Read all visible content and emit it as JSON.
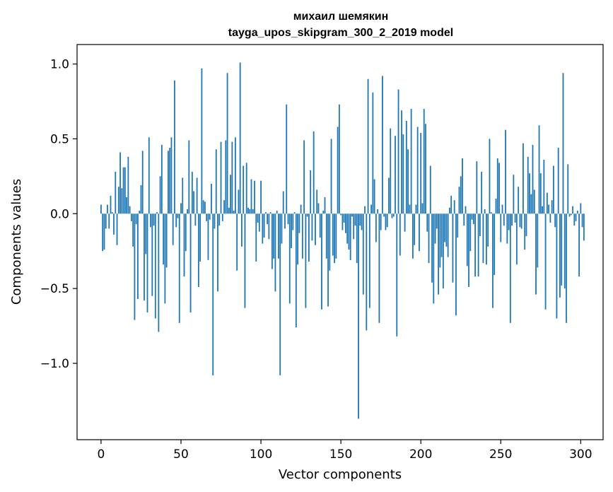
{
  "chart_data": {
    "type": "bar",
    "title": "михаил шемякин",
    "subtitle": "tayga_upos_skipgram_300_2_2019 model",
    "xlabel": "Vector components",
    "ylabel": "Components values",
    "xlim": [
      -15,
      314
    ],
    "ylim": [
      -1.51,
      1.13
    ],
    "xticks": [
      0,
      50,
      100,
      150,
      200,
      250,
      300
    ],
    "xtick_labels": [
      "0",
      "50",
      "100",
      "150",
      "200",
      "250",
      "300"
    ],
    "yticks": [
      -1.0,
      -0.5,
      0.0,
      0.5,
      1.0
    ],
    "ytick_labels": [
      "−1.0",
      "−0.5",
      "0.0",
      "0.5",
      "1.0"
    ],
    "grid": false,
    "legend": "none",
    "color": "#1f77b4",
    "x_start": 0,
    "values": [
      0.06,
      -0.25,
      -0.24,
      -0.1,
      0.06,
      -0.1,
      0.12,
      0.01,
      -0.14,
      0.28,
      -0.21,
      0.18,
      0.41,
      0.17,
      0.31,
      0.31,
      0.11,
      0.38,
      0.05,
      -0.05,
      -0.22,
      -0.71,
      -0.07,
      -0.57,
      0.02,
      0.19,
      0.42,
      -0.58,
      -0.27,
      -0.66,
      0.51,
      -0.09,
      -0.55,
      -0.08,
      -0.7,
      0.01,
      -0.79,
      0.25,
      0.46,
      -0.34,
      -0.6,
      -0.36,
      0.42,
      0.44,
      0.51,
      -0.21,
      0.89,
      -0.09,
      -0.03,
      -0.73,
      0.07,
      0.24,
      -0.42,
      -0.25,
      0.03,
      0.49,
      -0.66,
      0.28,
      0.15,
      -0.08,
      0.24,
      -0.49,
      -0.32,
      0.97,
      0.09,
      0.08,
      -0.05,
      -0.31,
      -0.04,
      0.2,
      -1.08,
      -0.1,
      0.43,
      -0.52,
      -0.08,
      0.48,
      -0.05,
      0.09,
      0.49,
      0.94,
      0.04,
      0.26,
      0.48,
      0.02,
      0.51,
      -0.38,
      0.16,
      1.01,
      -0.22,
      0.32,
      -0.63,
      0.34,
      0.04,
      0.03,
      0.23,
      0.03,
      0.22,
      -0.32,
      -0.06,
      -0.12,
      0.22,
      -0.2,
      -0.16,
      0.01,
      -0.07,
      -0.17,
      0.01,
      -0.37,
      -0.3,
      -0.52,
      0.02,
      -0.3,
      -1.08,
      -0.2,
      0.15,
      -0.1,
      0.73,
      -0.07,
      -0.6,
      -0.23,
      -0.11,
      0.01,
      -0.76,
      -0.34,
      -0.13,
      0.06,
      -0.3,
      0.49,
      -0.63,
      -0.02,
      -0.32,
      0.29,
      -0.18,
      0.55,
      -0.21,
      0.16,
      0.07,
      -0.16,
      -0.64,
      0.02,
      0.11,
      -0.3,
      -0.62,
      -0.38,
      0.5,
      -0.28,
      -0.33,
      -0.3,
      0.58,
      0.73,
      -0.01,
      -0.11,
      -0.06,
      -0.13,
      -0.2,
      -0.24,
      -0.31,
      -0.02,
      -0.17,
      -0.08,
      -0.33,
      -1.37,
      -0.08,
      -0.11,
      -0.54,
      0.05,
      -0.78,
      0.9,
      -0.63,
      0.06,
      0.81,
      0.23,
      -0.19,
      0.03,
      -0.73,
      -0.11,
      0.92,
      -0.02,
      -0.11,
      -0.09,
      0.24,
      0.57,
      -0.03,
      -0.02,
      0.52,
      -0.82,
      0.83,
      -0.28,
      0.69,
      0.53,
      -0.12,
      0.62,
      0.43,
      0.06,
      0.7,
      -0.3,
      -0.21,
      0.06,
      0.58,
      -0.25,
      0.54,
      0.07,
      0.7,
      0.6,
      -0.12,
      -0.33,
      0.32,
      -0.46,
      -0.6,
      -0.2,
      -0.1,
      -0.54,
      -0.36,
      -0.29,
      -0.5,
      -0.19,
      -0.22,
      -0.29,
      0.04,
      0.12,
      -0.46,
      0.09,
      -0.68,
      -0.16,
      0.18,
      0.25,
      0.37,
      -0.08,
      0.05,
      -0.35,
      -0.49,
      -0.25,
      -0.04,
      -0.07,
      -0.42,
      0.35,
      -0.42,
      -0.15,
      0.28,
      -0.33,
      0.03,
      -0.34,
      -0.22,
      0.5,
      0.01,
      -0.63,
      -0.41,
      0.1,
      0.37,
      0.34,
      -0.19,
      0.06,
      -0.08,
      0.56,
      -0.2,
      -0.11,
      -0.73,
      -0.08,
      0.26,
      -0.06,
      -0.34,
      0.18,
      -0.09,
      -0.1,
      0.47,
      -0.24,
      -0.15,
      0.38,
      0.27,
      0.13,
      0.46,
      0.16,
      -0.54,
      -0.36,
      0.59,
      0.27,
      0.05,
      0.36,
      -0.64,
      0.14,
      0.06,
      -0.06,
      0.09,
      0.32,
      -0.09,
      -0.7,
      0.44,
      -0.56,
      -0.48,
      0.94,
      -0.5,
      -0.73,
      0.33,
      -0.02,
      -0.01,
      0.05,
      -0.08,
      -0.05,
      0.02,
      -0.42,
      0.07,
      -0.09,
      -0.18
    ]
  }
}
